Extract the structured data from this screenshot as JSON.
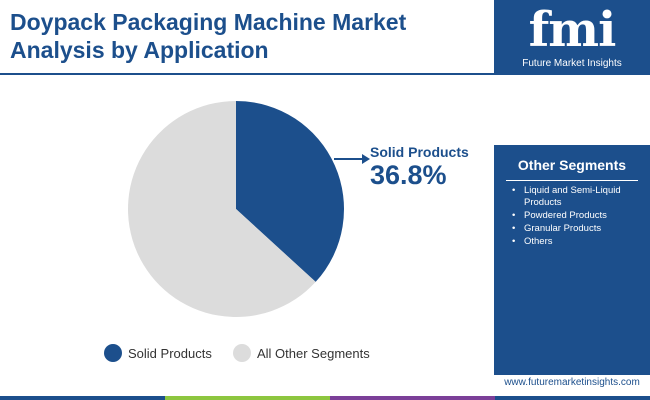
{
  "title": "Doypack Packaging Machine Market Analysis by Application",
  "logo": {
    "letters": "fmi",
    "name": "Future Market Insights"
  },
  "sidebar": {
    "heading": "Other Segments",
    "items": [
      "Liquid and Semi-Liquid Products",
      "Powdered Products",
      "Granular Products",
      "Others"
    ]
  },
  "footer": {
    "url": "www.futuremarketinsights.com"
  },
  "colors": {
    "primary": "#1c4f8c",
    "other": "#dcdcdc",
    "green": "#8dc63f",
    "purple": "#7b3f98"
  },
  "chart_data": {
    "type": "pie",
    "slices": [
      {
        "label": "Solid Products",
        "value": 36.8,
        "color": "#1c4f8c"
      },
      {
        "label": "All Other Segments",
        "value": 63.2,
        "color": "#dcdcdc"
      }
    ],
    "annotation": {
      "label": "Solid Products",
      "value_text": "36.8%"
    },
    "legend": [
      "Solid Products",
      "All Other Segments"
    ],
    "legend_position": "bottom"
  }
}
